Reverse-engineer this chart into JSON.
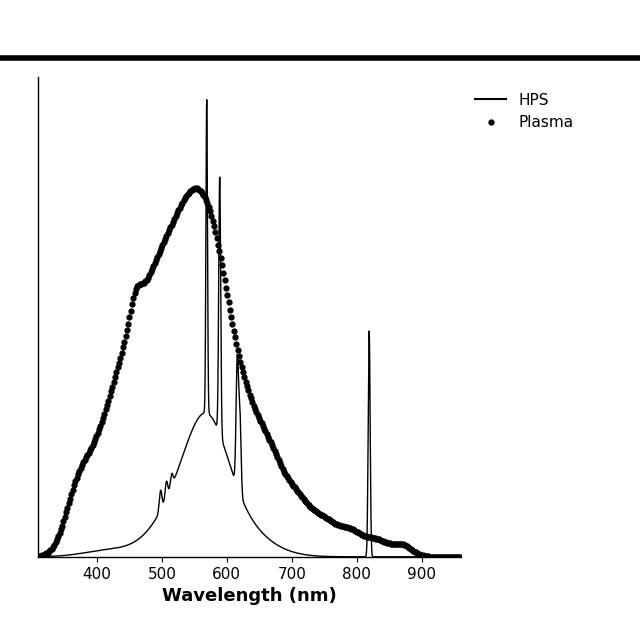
{
  "xlabel": "Wavelength (nm)",
  "xlim": [
    310,
    960
  ],
  "ylim": [
    0,
    1.05
  ],
  "xticks": [
    400,
    500,
    600,
    700,
    800,
    900
  ],
  "legend_labels": [
    "HPS",
    "Plasma"
  ],
  "background_color": "#ffffff",
  "line_color": "#000000",
  "xlabel_fontsize": 13,
  "xlabel_fontweight": "bold"
}
